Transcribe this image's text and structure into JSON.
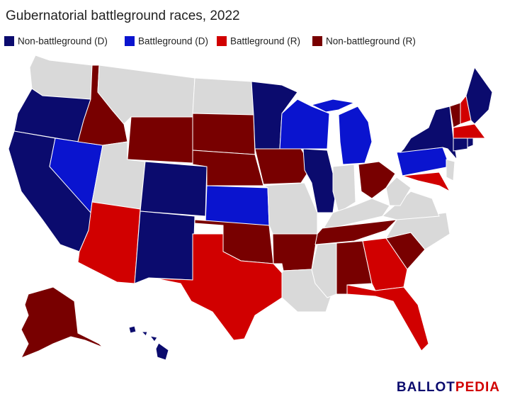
{
  "title": "Gubernatorial battleground races, 2022",
  "legend": [
    {
      "label": "Non-battleground (D)",
      "color": "#0b0b6e"
    },
    {
      "label": "Battleground (D)",
      "color": "#0a14cf"
    },
    {
      "label": "Battleground (R)",
      "color": "#d10000"
    },
    {
      "label": "Non-battleground (R)",
      "color": "#780000"
    }
  ],
  "logo": {
    "part1": "BALLOT",
    "part2": "PEDIA"
  }
}
